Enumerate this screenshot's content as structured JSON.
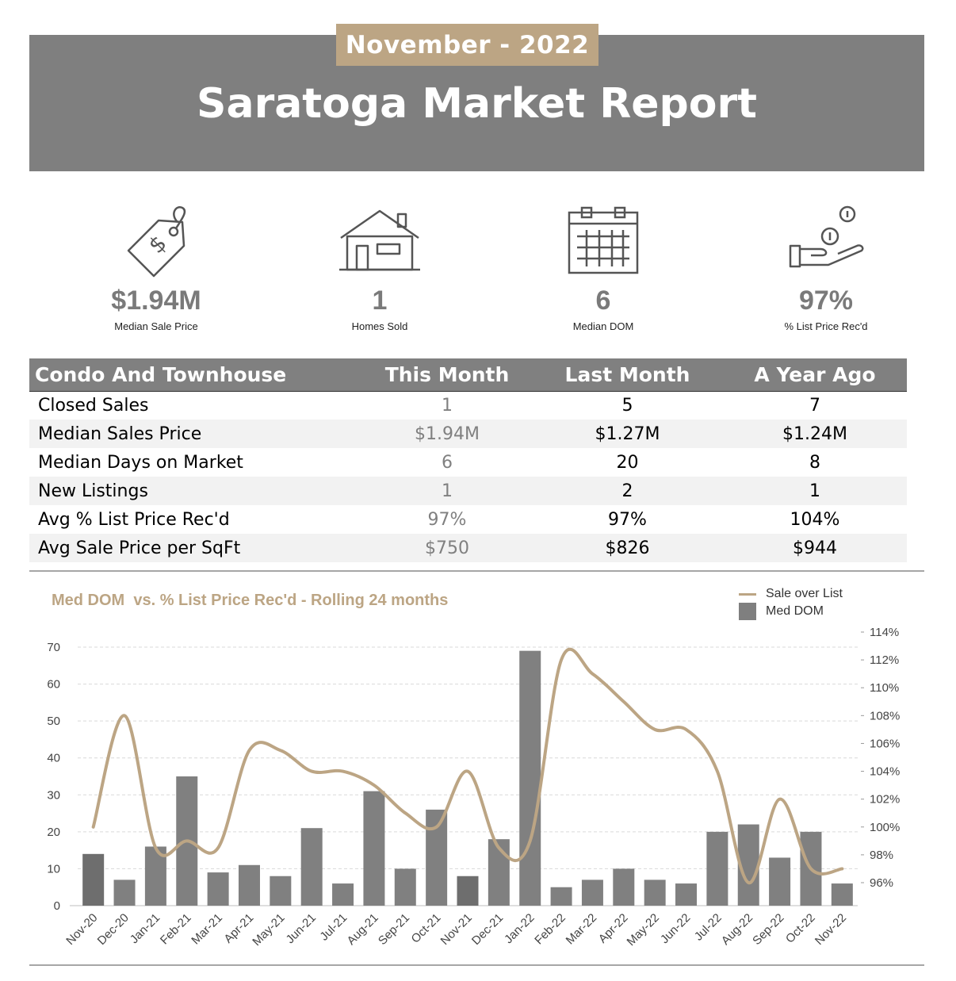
{
  "header": {
    "month_tag": "November - 2022",
    "title": "Saratoga Market Report"
  },
  "stats": [
    {
      "value": "$1.94M",
      "label": "Median Sale Price",
      "icon": "price-tag-icon"
    },
    {
      "value": "1",
      "label": "Homes Sold",
      "icon": "house-icon"
    },
    {
      "value": "6",
      "label": "Median DOM",
      "icon": "calendar-icon"
    },
    {
      "value": "97%",
      "label": "% List Price Rec'd",
      "icon": "hand-coins-icon"
    }
  ],
  "table": {
    "headers": [
      "Condo And Townhouse",
      "This Month",
      "Last Month",
      "A Year Ago"
    ],
    "rows": [
      [
        "Closed Sales",
        "1",
        "5",
        "7"
      ],
      [
        "Median Sales Price",
        "$1.94M",
        "$1.27M",
        "$1.24M"
      ],
      [
        "Median Days on Market",
        "6",
        "20",
        "8"
      ],
      [
        "New Listings",
        "1",
        "2",
        "1"
      ],
      [
        "Avg % List Price Rec'd",
        "97%",
        "97%",
        "104%"
      ],
      [
        "Avg Sale Price per SqFt",
        "$750",
        "$826",
        "$944"
      ]
    ]
  },
  "colors": {
    "header_gray": "#7f7f7f",
    "accent_tan": "#bca584",
    "bar_gray": "#7f7f7f"
  },
  "chart_data": {
    "type": "bar",
    "title": "Med DOM  vs. % List Price Rec'd - Rolling 24 months",
    "categories": [
      "Nov-20",
      "Dec-20",
      "Jan-21",
      "Feb-21",
      "Mar-21",
      "Apr-21",
      "May-21",
      "Jun-21",
      "Jul-21",
      "Aug-21",
      "Sep-21",
      "Oct-21",
      "Nov-21",
      "Dec-21",
      "Jan-22",
      "Feb-22",
      "Mar-22",
      "Apr-22",
      "May-22",
      "Jun-22",
      "Jul-22",
      "Aug-22",
      "Sep-22",
      "Oct-22",
      "Nov-22"
    ],
    "series": [
      {
        "name": "Med DOM",
        "type": "bar",
        "axis": "left",
        "values": [
          14,
          7,
          16,
          35,
          9,
          11,
          8,
          21,
          6,
          31,
          10,
          26,
          8,
          18,
          69,
          5,
          7,
          10,
          7,
          6,
          20,
          22,
          13,
          20,
          6
        ]
      },
      {
        "name": "Sale over List",
        "type": "line",
        "axis": "right",
        "values": [
          100,
          108,
          98.5,
          99,
          98.5,
          105.5,
          105.5,
          104,
          104,
          103,
          101,
          100,
          104,
          98.5,
          99,
          112,
          111,
          109,
          107,
          107,
          104,
          96,
          102,
          97,
          97
        ]
      }
    ],
    "left_axis": {
      "ylim": [
        0,
        70
      ],
      "ticks": [
        "0",
        "10",
        "20",
        "30",
        "40",
        "50",
        "60",
        "70"
      ]
    },
    "right_axis": {
      "ylim": [
        94.5,
        114
      ],
      "ticks": [
        "96%",
        "98%",
        "100%",
        "102%",
        "104%",
        "106%",
        "108%",
        "110%",
        "112%",
        "114%"
      ]
    },
    "legend": {
      "placement": "top-right",
      "entries": [
        "Sale over List",
        "Med DOM"
      ]
    },
    "grid": true
  }
}
